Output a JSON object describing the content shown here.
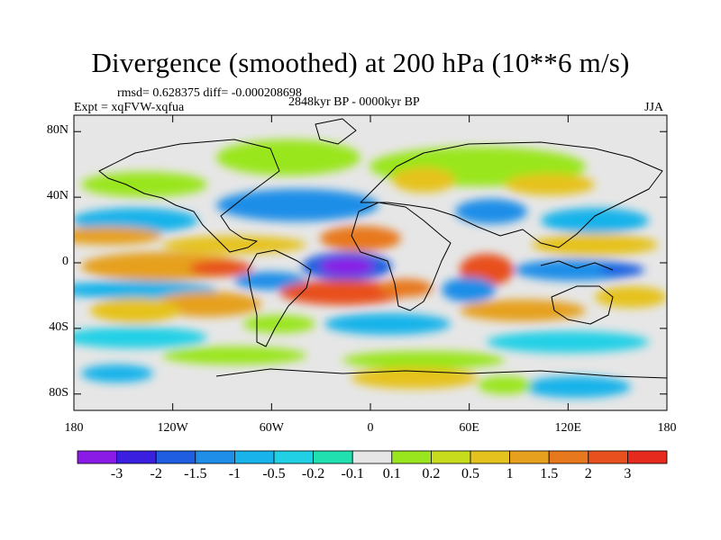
{
  "title": "Divergence (smoothed) at 200 hPa (10**6 m/s)",
  "stats_line": "rmsd= 0.628375 diff= -0.000208698",
  "expt": "Expt = xqFVW-xqfua",
  "period": "2848kyr BP - 0000kyr BP",
  "season": "JJA",
  "map": {
    "projection": "cylindrical-equidistant",
    "lon_range": [
      -180,
      180
    ],
    "lat_range": [
      -90,
      90
    ],
    "lat_ticks": [
      {
        "lat": 80,
        "label": "80N"
      },
      {
        "lat": 40,
        "label": "40N"
      },
      {
        "lat": 0,
        "label": "0"
      },
      {
        "lat": -40,
        "label": "40S"
      },
      {
        "lat": -80,
        "label": "80S"
      }
    ],
    "lon_ticks": [
      {
        "lon": -180,
        "label": "180"
      },
      {
        "lon": -120,
        "label": "120W"
      },
      {
        "lon": -60,
        "label": "60W"
      },
      {
        "lon": 0,
        "label": "0"
      },
      {
        "lon": 60,
        "label": "60E"
      },
      {
        "lon": 120,
        "label": "120E"
      },
      {
        "lon": 180,
        "label": "180"
      }
    ],
    "background_color": "#e6e6e6"
  },
  "colorbar": {
    "colors": [
      "#8a1be6",
      "#3a1fe0",
      "#1f5ee0",
      "#1f8ee8",
      "#18b3ea",
      "#22d0e6",
      "#20e0b0",
      "#e6e6e6",
      "#9ae61e",
      "#c8dc1e",
      "#e6c21e",
      "#e6a01e",
      "#e8781e",
      "#e8501e",
      "#e62a1e"
    ],
    "labels": [
      "-3",
      "-2",
      "-1.5",
      "-1",
      "-0.5",
      "-0.2",
      "-0.1",
      "0.1",
      "0.2",
      "0.5",
      "1",
      "1.5",
      "2",
      "3"
    ]
  },
  "field_features": [
    {
      "name": "west-africa-atlantic-minimum",
      "lon": -10,
      "lat": 2,
      "value": -3.2
    },
    {
      "name": "equatorial-atlantic-band-max",
      "lon": -15,
      "lat": -12,
      "value": 2.2
    },
    {
      "name": "west-indian-ocean-max",
      "lon": 58,
      "lat": -2,
      "value": 2.5
    },
    {
      "name": "south-pacific-max",
      "lon": -110,
      "lat": -28,
      "value": 1.5
    },
    {
      "name": "central-pacific-band",
      "lon": -130,
      "lat": -5,
      "value": 1.2
    },
    {
      "name": "north-atlantic-min",
      "lon": -40,
      "lat": 32,
      "value": -1.2
    },
    {
      "name": "southern-ocean-positive",
      "lon": 40,
      "lat": -62,
      "value": 0.6
    }
  ]
}
